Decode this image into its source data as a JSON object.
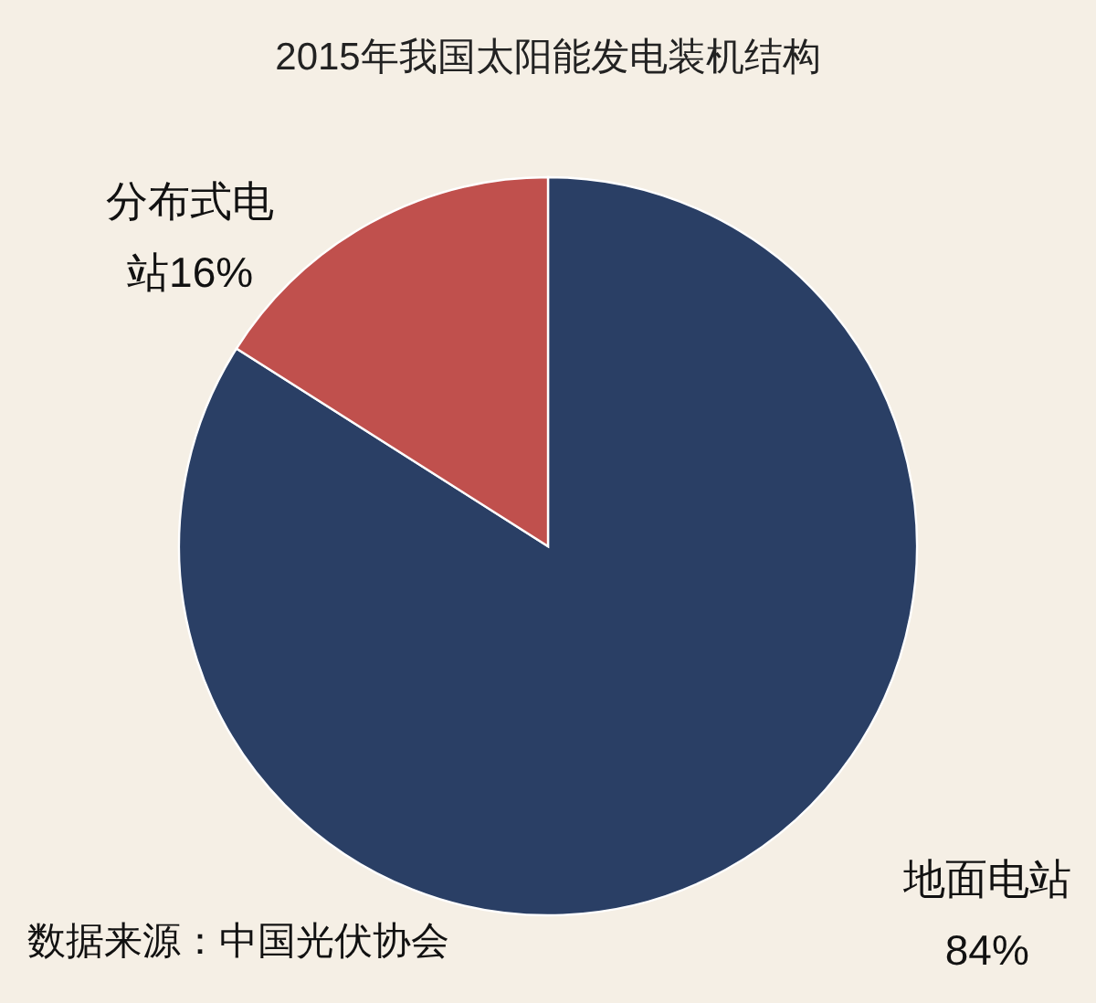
{
  "chart_data": {
    "type": "pie",
    "title": "2015年我国太阳能发电装机结构",
    "categories": [
      "地面电站",
      "分布式电站"
    ],
    "values": [
      84,
      16
    ],
    "colors": [
      "#2a3f65",
      "#c0504d"
    ],
    "value_labels": [
      "84%",
      "16%"
    ],
    "annotations": [
      "数据来源：中国光伏协会"
    ]
  }
}
